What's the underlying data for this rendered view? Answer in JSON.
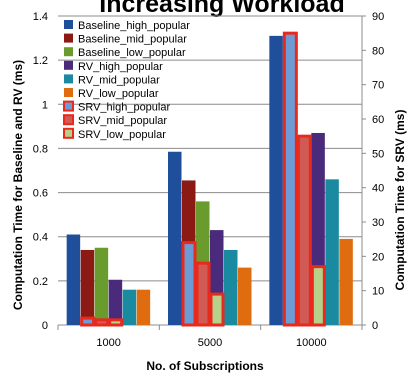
{
  "chart_data": {
    "type": "bar",
    "title": "Increasing Workload",
    "xlabel": "No. of Subscriptions",
    "ylabel_left": "Computation Time for Baseline and RV (ms)",
    "ylabel_right": "Computation Time for SRV (ms)",
    "categories": [
      "1000",
      "5000",
      "10000"
    ],
    "ylim_left": [
      0,
      1.4
    ],
    "yticks_left": [
      "0",
      "0.2",
      "0.4",
      "0.6",
      "0.8",
      "1",
      "1.2",
      "1.4"
    ],
    "ylim_right": [
      0,
      90
    ],
    "yticks_right": [
      "0",
      "10",
      "20",
      "30",
      "40",
      "50",
      "60",
      "70",
      "80",
      "90"
    ],
    "grid": true,
    "legend_position": "top-left",
    "series": [
      {
        "name": "Baseline_high_popular",
        "axis": "left",
        "color": "#1f4e9a",
        "values": [
          0.41,
          0.785,
          1.31
        ]
      },
      {
        "name": "Baseline_mid_popular",
        "axis": "left",
        "color": "#8b1a14",
        "values": [
          0.34,
          0.655,
          1.01
        ]
      },
      {
        "name": "Baseline_low_popular",
        "axis": "left",
        "color": "#6a9b2d",
        "values": [
          0.35,
          0.56,
          0.0
        ]
      },
      {
        "name": "RV_high_popular",
        "axis": "left",
        "color": "#4a2a7a",
        "values": [
          0.205,
          0.43,
          0.87
        ]
      },
      {
        "name": "RV_mid_popular",
        "axis": "left",
        "color": "#1a8aa0",
        "values": [
          0.16,
          0.34,
          0.66
        ]
      },
      {
        "name": "RV_low_popular",
        "axis": "left",
        "color": "#e06c10",
        "values": [
          0.16,
          0.26,
          0.39
        ]
      },
      {
        "name": "SRV_high_popular",
        "axis": "right",
        "color": "#6d9bd6",
        "border": "#e8291c",
        "values": [
          2,
          24,
          85
        ]
      },
      {
        "name": "SRV_mid_popular",
        "axis": "right",
        "color": "#d05b55",
        "border": "#e8291c",
        "values": [
          1.5,
          18,
          55
        ]
      },
      {
        "name": "SRV_low_popular",
        "axis": "right",
        "color": "#b7d08a",
        "border": "#e8291c",
        "values": [
          1.5,
          9,
          17
        ]
      }
    ]
  }
}
